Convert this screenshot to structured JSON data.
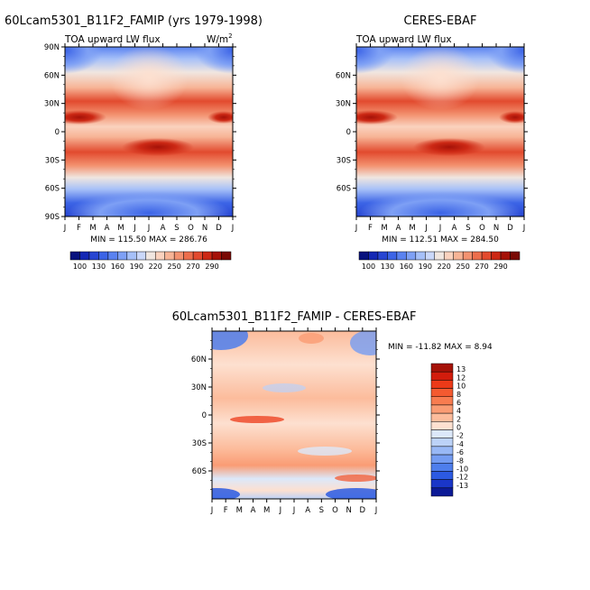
{
  "panels": [
    {
      "id": "model",
      "title": "60Lcam5301_B11F2_FAMIP (yrs 1979-1998)",
      "subtitle": "TOA upward LW flux",
      "units": "W/m",
      "units_sup": "2",
      "stats": "MIN = 115.50  MAX = 286.76"
    },
    {
      "id": "obs",
      "title": "CERES-EBAF",
      "subtitle": "TOA upward LW flux",
      "stats": "MIN = 112.51  MAX = 284.50"
    },
    {
      "id": "diff",
      "title": "60Lcam5301_B11F2_FAMIP - CERES-EBAF",
      "stats": "MIN = -11.82 MAX =   8.94"
    }
  ],
  "months": [
    "J",
    "F",
    "M",
    "A",
    "M",
    "J",
    "J",
    "A",
    "S",
    "O",
    "N",
    "D",
    "J"
  ],
  "lat_labels_full": [
    "90N",
    "60N",
    "30N",
    "0",
    "30S",
    "60S",
    "90S"
  ],
  "lat_labels_inner": [
    "60N",
    "30N",
    "0",
    "30S",
    "60S"
  ],
  "abs_colorbar": {
    "labels": [
      "100",
      "130",
      "160",
      "190",
      "220",
      "250",
      "270",
      "290"
    ],
    "colors": [
      "#08127e",
      "#1428b4",
      "#2846d2",
      "#3c64e6",
      "#5a82f0",
      "#7ea0f5",
      "#a6c0f8",
      "#cad8fa",
      "#f0e6e0",
      "#fad2be",
      "#f7b496",
      "#f39270",
      "#ec6e4c",
      "#e24a2e",
      "#cc2814",
      "#a51208",
      "#7a0a04"
    ]
  },
  "diff_colorbar": {
    "labels": [
      "13",
      "12",
      "10",
      "8",
      "6",
      "4",
      "2",
      "0",
      "-2",
      "-4",
      "-6",
      "-8",
      "-10",
      "-12",
      "-13"
    ],
    "colors": [
      "#a51208",
      "#d21c0c",
      "#ec3a18",
      "#f45a30",
      "#f87c50",
      "#fa9c74",
      "#fcbc9c",
      "#fde0d0",
      "#dce8fa",
      "#bcd2f8",
      "#98b8f6",
      "#749cf2",
      "#4e7eec",
      "#2c5ae2",
      "#1a36c8",
      "#0c1a96"
    ]
  },
  "chart_data": [
    {
      "type": "heatmap",
      "title": "60Lcam5301_B11F2_FAMIP (yrs 1979-1998)",
      "subtitle": "TOA upward LW flux",
      "x": "month of year (J..J)",
      "y": "latitude (90S..90N)",
      "value_range": [
        115.5,
        286.76
      ],
      "levels": [
        100,
        115,
        130,
        145,
        160,
        175,
        190,
        205,
        220,
        235,
        250,
        260,
        270,
        280,
        290
      ]
    },
    {
      "type": "heatmap",
      "title": "CERES-EBAF",
      "subtitle": "TOA upward LW flux",
      "value_range": [
        112.51,
        284.5
      ],
      "levels": [
        100,
        115,
        130,
        145,
        160,
        175,
        190,
        205,
        220,
        235,
        250,
        260,
        270,
        280,
        290
      ]
    },
    {
      "type": "heatmap",
      "title": "60Lcam5301_B11F2_FAMIP - CERES-EBAF",
      "value_range": [
        -11.82,
        8.94
      ],
      "levels": [
        -13,
        -12,
        -10,
        -8,
        -6,
        -4,
        -2,
        0,
        2,
        4,
        6,
        8,
        10,
        12,
        13
      ]
    }
  ]
}
